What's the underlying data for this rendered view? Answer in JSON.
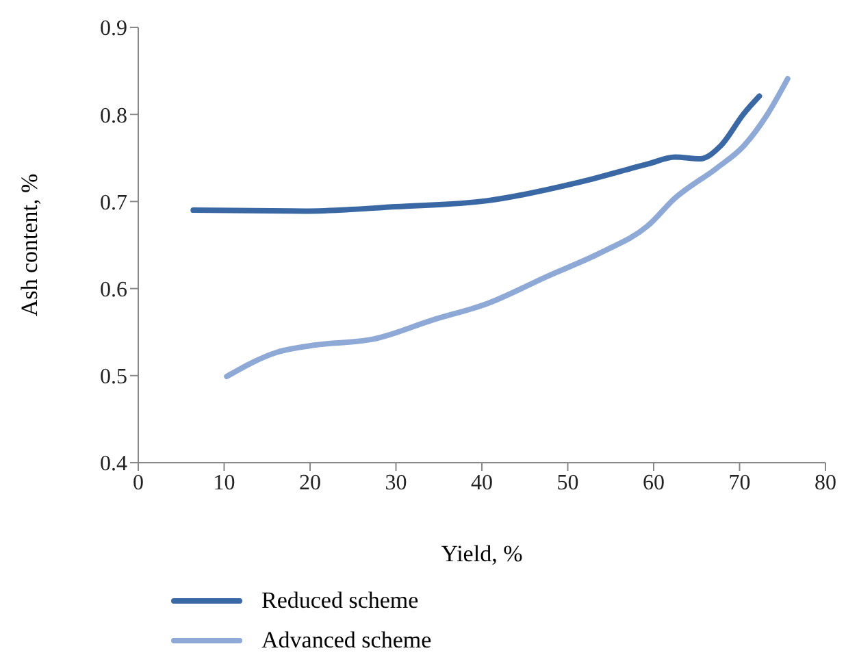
{
  "chart_data": {
    "type": "line",
    "xlabel": "Yield, %",
    "ylabel": "Ash content, %",
    "xlim": [
      0,
      80
    ],
    "xticks": [
      0,
      10,
      20,
      30,
      40,
      50,
      60,
      70,
      80
    ],
    "ylim": [
      0.4,
      0.9
    ],
    "yticks": [
      0.4,
      0.5,
      0.6,
      0.7,
      0.8,
      0.9
    ],
    "grid": false,
    "legend": "bottom",
    "marker": "none",
    "line_style": "solid",
    "series": [
      {
        "name": "Reduced scheme",
        "color": "#3a68a4",
        "x": [
          6.4,
          19.4,
          30,
          40.7,
          51.3,
          59.3,
          62.5,
          65.4,
          67.8,
          70.5,
          72.3
        ],
        "values": [
          0.69,
          0.689,
          0.694,
          0.701,
          0.722,
          0.743,
          0.751,
          0.749,
          0.764,
          0.801,
          0.821
        ]
      },
      {
        "name": "Advanced scheme",
        "color": "#8ea9d6",
        "x": [
          10.3,
          16.2,
          20.5,
          27.4,
          34.3,
          40.7,
          47.6,
          54,
          59.3,
          62.5,
          67.3,
          70.5,
          73.1,
          75.6
        ],
        "values": [
          0.499,
          0.527,
          0.535,
          0.542,
          0.564,
          0.583,
          0.614,
          0.642,
          0.672,
          0.704,
          0.738,
          0.764,
          0.798,
          0.841
        ]
      }
    ]
  }
}
